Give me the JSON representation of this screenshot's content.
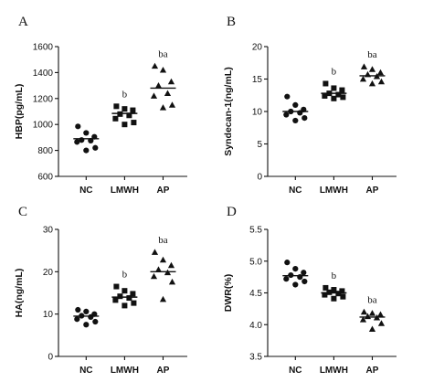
{
  "chart_data": [
    {
      "type": "scatter",
      "panel": "A",
      "ylabel": "HBP(pg/mL)",
      "categories": [
        "NC",
        "LMWH",
        "AP"
      ],
      "ylim": [
        600,
        1600
      ],
      "yticks": [
        600,
        800,
        1000,
        1200,
        1400,
        1600
      ],
      "marker": "circle",
      "groups": [
        {
          "category": "NC",
          "marker": "circle",
          "mean": 890,
          "annotation": "",
          "values": [
            985,
            935,
            905,
            880,
            875,
            865,
            820,
            800
          ]
        },
        {
          "category": "LMWH",
          "marker": "square",
          "mean": 1085,
          "annotation": "b",
          "values": [
            1140,
            1120,
            1110,
            1080,
            1070,
            1045,
            1015,
            1000
          ]
        },
        {
          "category": "AP",
          "marker": "triangle",
          "mean": 1280,
          "annotation": "ba",
          "values": [
            1450,
            1420,
            1330,
            1300,
            1240,
            1220,
            1150,
            1130
          ]
        }
      ]
    },
    {
      "type": "scatter",
      "panel": "B",
      "ylabel": "Syndecan-1(ng/mL)",
      "categories": [
        "NC",
        "LMWH",
        "AP"
      ],
      "ylim": [
        0,
        20
      ],
      "yticks": [
        0,
        5,
        10,
        15,
        20
      ],
      "groups": [
        {
          "category": "NC",
          "marker": "circle",
          "mean": 10.0,
          "annotation": "",
          "values": [
            12.3,
            11.0,
            10.3,
            10.0,
            9.8,
            9.5,
            9.0,
            8.6
          ]
        },
        {
          "category": "LMWH",
          "marker": "square",
          "mean": 12.8,
          "annotation": "b",
          "values": [
            14.3,
            13.6,
            13.3,
            12.8,
            12.6,
            12.4,
            12.2,
            12.0
          ]
        },
        {
          "category": "AP",
          "marker": "triangle",
          "mean": 15.5,
          "annotation": "ba",
          "values": [
            16.9,
            16.5,
            16.0,
            15.7,
            15.4,
            15.0,
            14.6,
            14.3
          ]
        }
      ]
    },
    {
      "type": "scatter",
      "panel": "C",
      "ylabel": "HA(ng/mL)",
      "categories": [
        "NC",
        "LMWH",
        "AP"
      ],
      "ylim": [
        0,
        30
      ],
      "yticks": [
        0,
        10,
        20,
        30
      ],
      "groups": [
        {
          "category": "NC",
          "marker": "circle",
          "mean": 9.5,
          "annotation": "",
          "values": [
            11.0,
            10.6,
            10.0,
            9.6,
            9.3,
            8.8,
            8.2,
            7.5
          ]
        },
        {
          "category": "LMWH",
          "marker": "square",
          "mean": 14.0,
          "annotation": "b",
          "values": [
            16.5,
            15.5,
            14.8,
            14.2,
            13.8,
            13.3,
            12.6,
            12.0
          ]
        },
        {
          "category": "AP",
          "marker": "triangle",
          "mean": 20.0,
          "annotation": "ba",
          "values": [
            24.6,
            22.8,
            21.5,
            20.5,
            19.8,
            18.9,
            17.6,
            13.5
          ]
        }
      ]
    },
    {
      "type": "scatter",
      "panel": "D",
      "ylabel": "DWR(%)",
      "categories": [
        "NC",
        "LMWH",
        "AP"
      ],
      "ylim": [
        3.5,
        5.5
      ],
      "yticks": [
        3.5,
        4.0,
        4.5,
        5.0,
        5.5
      ],
      "groups": [
        {
          "category": "NC",
          "marker": "circle",
          "mean": 4.77,
          "annotation": "",
          "values": [
            4.98,
            4.88,
            4.82,
            4.78,
            4.75,
            4.72,
            4.68,
            4.63
          ]
        },
        {
          "category": "LMWH",
          "marker": "square",
          "mean": 4.5,
          "annotation": "b",
          "values": [
            4.58,
            4.55,
            4.53,
            4.51,
            4.49,
            4.47,
            4.44,
            4.41
          ]
        },
        {
          "category": "AP",
          "marker": "triangle",
          "mean": 4.12,
          "annotation": "ba",
          "values": [
            4.2,
            4.18,
            4.16,
            4.13,
            4.11,
            4.08,
            4.02,
            3.93
          ]
        }
      ]
    }
  ]
}
